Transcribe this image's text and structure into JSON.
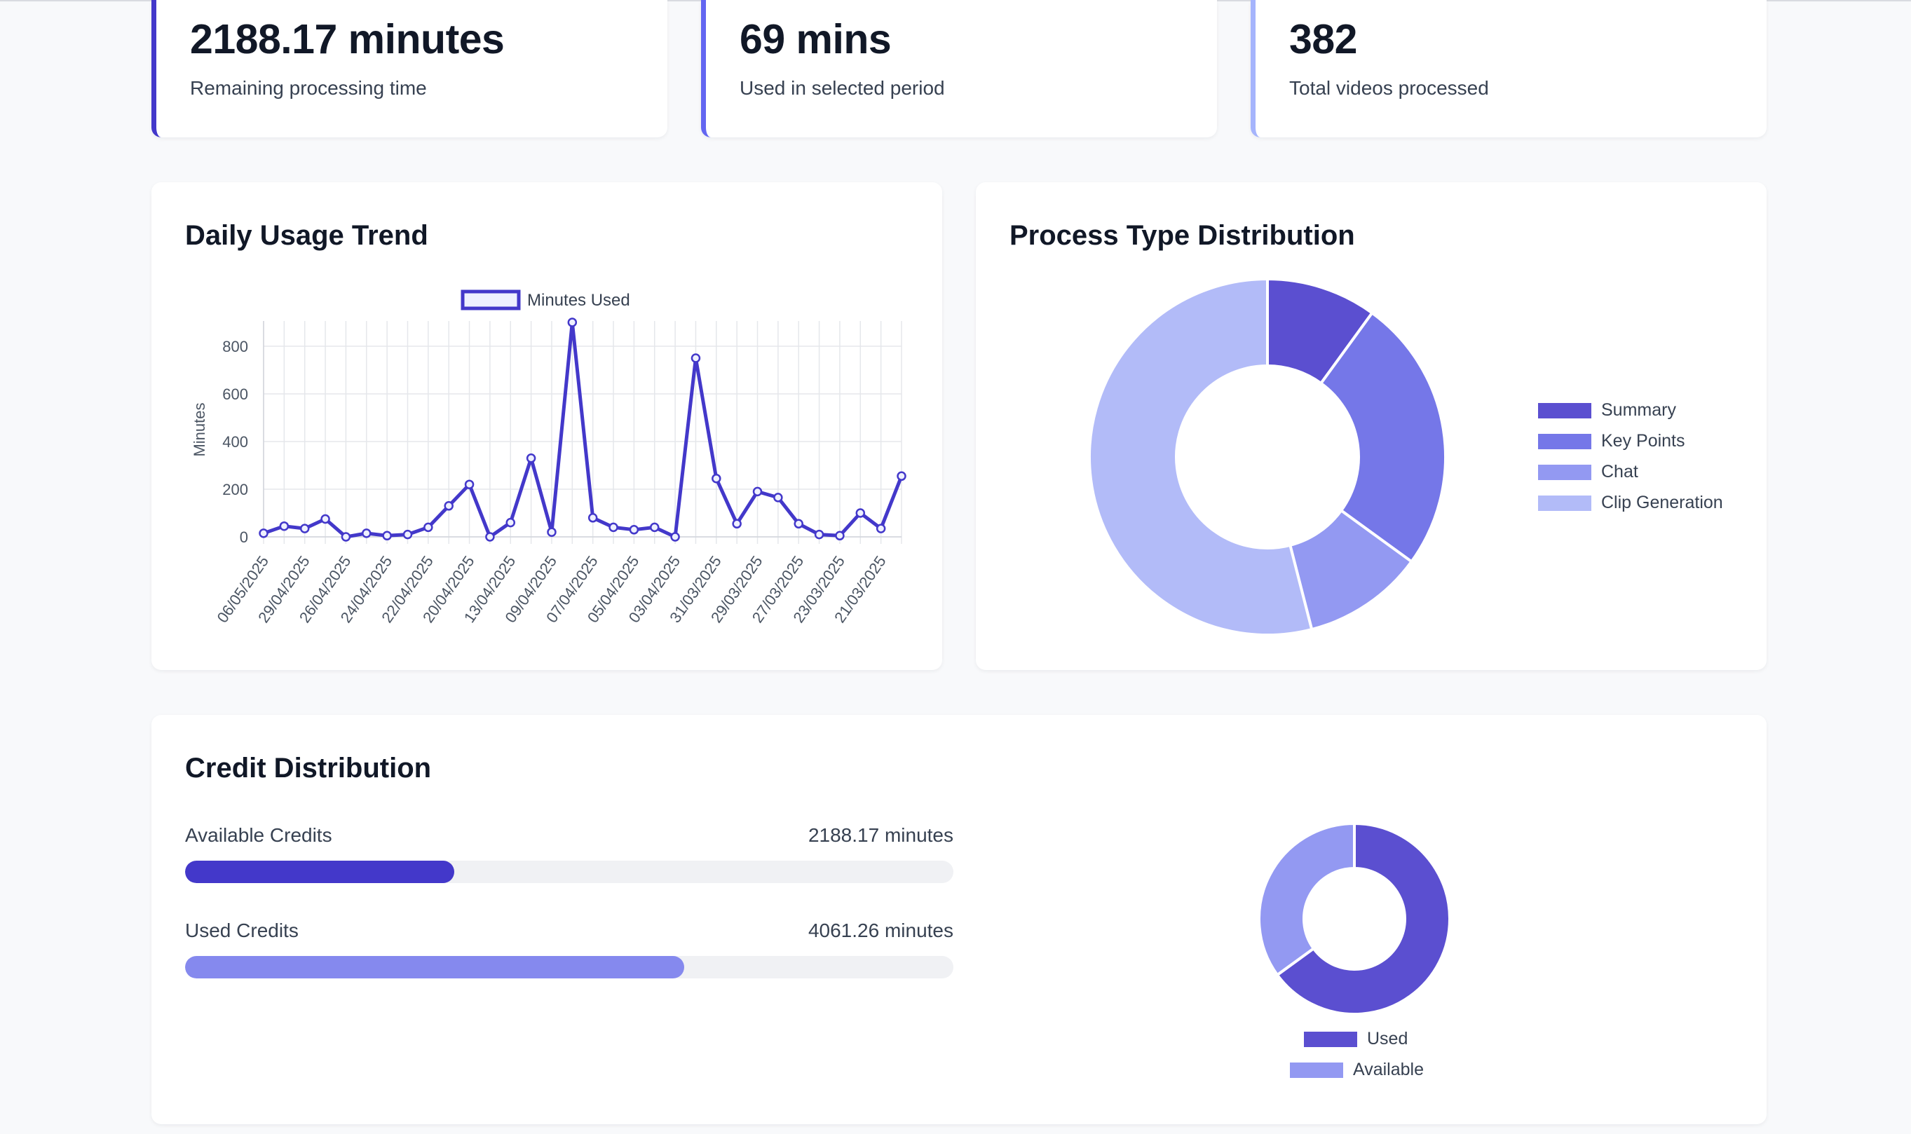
{
  "stats": [
    {
      "value": "2188.17 minutes",
      "label": "Remaining processing time",
      "accent": "#4338ca"
    },
    {
      "value": "69 mins",
      "label": "Used in selected period",
      "accent": "#6366f1"
    },
    {
      "value": "382",
      "label": "Total videos processed",
      "accent": "#a5b4fc"
    }
  ],
  "daily_usage": {
    "title": "Daily Usage Trend",
    "chart_data": {
      "type": "line",
      "legend": "Minutes Used",
      "ylabel": "Minutes",
      "ylim": [
        0,
        900
      ],
      "yticks": [
        0,
        200,
        400,
        600,
        800
      ],
      "grid": true,
      "legend_position": "top-center",
      "tick_labels": [
        "06/05/2025",
        "29/04/2025",
        "26/04/2025",
        "24/04/2025",
        "22/04/2025",
        "20/04/2025",
        "13/04/2025",
        "09/04/2025",
        "07/04/2025",
        "05/04/2025",
        "03/04/2025",
        "31/03/2025",
        "29/03/2025",
        "27/03/2025",
        "23/03/2025",
        "21/03/2025"
      ],
      "values": [
        15,
        45,
        35,
        75,
        0,
        15,
        5,
        10,
        40,
        130,
        220,
        0,
        60,
        330,
        20,
        900,
        80,
        40,
        30,
        40,
        0,
        750,
        245,
        55,
        190,
        165,
        55,
        10,
        5,
        100,
        35,
        255
      ],
      "color": "#4338ca"
    }
  },
  "process_types": {
    "title": "Process Type Distribution",
    "chart_data": {
      "type": "pie",
      "labels": [
        "Summary",
        "Key Points",
        "Chat",
        "Clip Generation"
      ],
      "values": [
        10,
        25,
        11,
        54
      ],
      "colors": [
        "#5b4fd0",
        "#7577e8",
        "#9399f2",
        "#b2bbf8"
      ]
    }
  },
  "credits": {
    "title": "Credit Distribution",
    "available_label": "Available Credits",
    "available_value": "2188.17 minutes",
    "available_fraction": 0.35,
    "available_color": "#4338ca",
    "used_label": "Used Credits",
    "used_value": "4061.26 minutes",
    "used_fraction": 0.65,
    "used_color": "#8589ee",
    "chart_data": {
      "type": "pie",
      "labels": [
        "Used",
        "Available"
      ],
      "values": [
        4061.26,
        2188.17
      ],
      "colors": [
        "#5b4fd0",
        "#9399f2"
      ]
    }
  }
}
